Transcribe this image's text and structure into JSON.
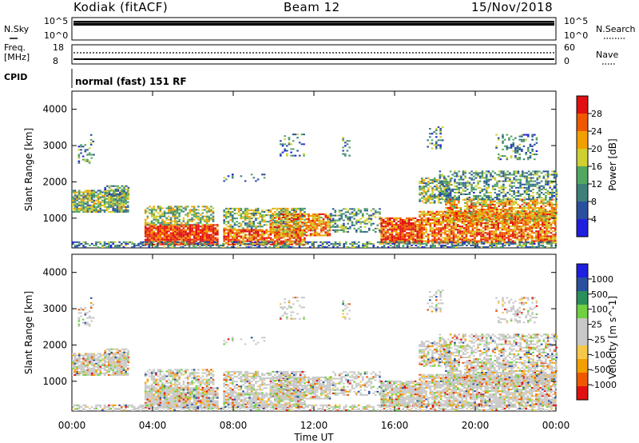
{
  "header": {
    "station": "Kodiak (fitACF)",
    "beam": "Beam 12",
    "date": "15/Nov/2018"
  },
  "nsky_panel": {
    "left_label": "N.Sky",
    "right_label": "N.Search",
    "ticks_left": [
      "10^5",
      "10^0"
    ],
    "ticks_right": [
      "10^5",
      "10^0"
    ]
  },
  "freq_panel": {
    "left_label_1": "Freq.",
    "left_label_2": "[MHz]",
    "right_label": "Nave",
    "ticks_left": [
      "18",
      "8"
    ],
    "ticks_right": [
      "60",
      "0"
    ]
  },
  "cpid_panel": {
    "label": "CPID",
    "program": "normal (fast) 151 RF"
  },
  "colors": {
    "power_scale": [
      "#1f1fe0",
      "#2a4f9e",
      "#3f7f7a",
      "#52a860",
      "#cfcf30",
      "#f2a000",
      "#f05800",
      "#e01010"
    ],
    "velocity_scale": [
      "#e01010",
      "#f05800",
      "#f2a000",
      "#f5c84a",
      "#c8c8c8",
      "#c8c8c8",
      "#6fd040",
      "#2a8f5a",
      "#2a4f9e",
      "#1f1fe0"
    ]
  },
  "chart_data": [
    {
      "type": "heatmap",
      "title": "Power",
      "xlabel": "",
      "ylabel": "Slant Range [km]",
      "x_ticks": [
        "00:00",
        "04:00",
        "08:00",
        "12:00",
        "16:00",
        "20:00",
        "00:00"
      ],
      "y_ticks": [
        "1000",
        "2000",
        "3000",
        "4000"
      ],
      "ylim": [
        180,
        4500
      ],
      "colorbar_label": "Power [dB]",
      "colorbar_ticks": [
        "4",
        "8",
        "12",
        "16",
        "20",
        "24",
        "28"
      ],
      "colorbar_range": [
        0,
        32
      ]
    },
    {
      "type": "heatmap",
      "title": "Velocity",
      "xlabel": "Time UT",
      "ylabel": "Slant Range [km]",
      "x_ticks": [
        "00:00",
        "04:00",
        "08:00",
        "12:00",
        "16:00",
        "20:00",
        "00:00"
      ],
      "y_ticks": [
        "1000",
        "2000",
        "3000",
        "4000"
      ],
      "ylim": [
        180,
        4500
      ],
      "colorbar_label": "Velocity [m s^-1]",
      "colorbar_ticks": [
        "-1000",
        "-500",
        "-100",
        "-25",
        "25",
        "100",
        "500",
        "1000"
      ]
    }
  ]
}
